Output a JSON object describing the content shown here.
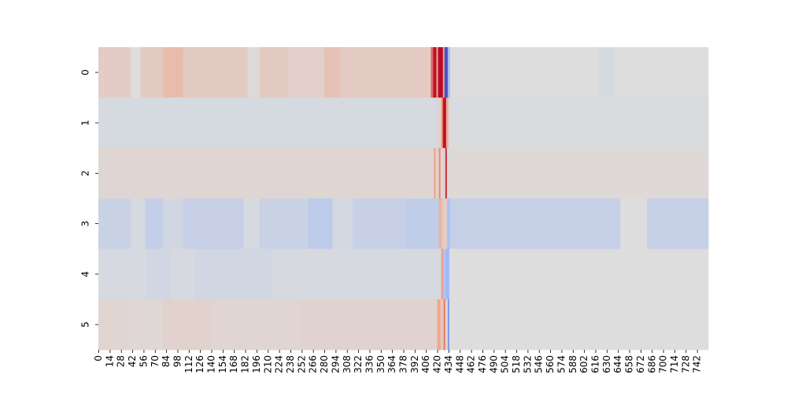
{
  "chart_data": {
    "type": "heatmap",
    "title": "",
    "xlabel": "",
    "ylabel": "",
    "colormap": "coolwarm",
    "color_range": [
      -1,
      1
    ],
    "colorbar": false,
    "n_columns": 756,
    "rows": [
      "0",
      "1",
      "2",
      "3",
      "4",
      "5"
    ],
    "x_ticks": [
      "0",
      "14",
      "28",
      "42",
      "56",
      "70",
      "84",
      "98",
      "112",
      "126",
      "140",
      "154",
      "168",
      "182",
      "196",
      "210",
      "224",
      "238",
      "252",
      "266",
      "280",
      "294",
      "308",
      "322",
      "336",
      "350",
      "364",
      "378",
      "392",
      "406",
      "420",
      "434",
      "448",
      "462",
      "476",
      "490",
      "504",
      "518",
      "532",
      "546",
      "560",
      "574",
      "588",
      "602",
      "616",
      "630",
      "644",
      "658",
      "672",
      "686",
      "700",
      "714",
      "728",
      "742"
    ],
    "row_segments": [
      [
        {
          "x": [
            0,
            40
          ],
          "v": 0.12
        },
        {
          "x": [
            40,
            52
          ],
          "v": 0.0
        },
        {
          "x": [
            52,
            80
          ],
          "v": 0.14
        },
        {
          "x": [
            80,
            105
          ],
          "v": 0.24
        },
        {
          "x": [
            105,
            185
          ],
          "v": 0.14
        },
        {
          "x": [
            185,
            200
          ],
          "v": 0.02
        },
        {
          "x": [
            200,
            235
          ],
          "v": 0.14
        },
        {
          "x": [
            235,
            280
          ],
          "v": 0.1
        },
        {
          "x": [
            280,
            300
          ],
          "v": 0.2
        },
        {
          "x": [
            300,
            412
          ],
          "v": 0.13
        },
        {
          "x": [
            412,
            415
          ],
          "v": 0.65
        },
        {
          "x": [
            415,
            419
          ],
          "v": 0.95
        },
        {
          "x": [
            419,
            421
          ],
          "v": 0.4
        },
        {
          "x": [
            421,
            427
          ],
          "v": 0.98
        },
        {
          "x": [
            427,
            429
          ],
          "v": 0.45
        },
        {
          "x": [
            429,
            433
          ],
          "v": -0.95
        },
        {
          "x": [
            433,
            436
          ],
          "v": -0.35
        },
        {
          "x": [
            436,
            620
          ],
          "v": 0.0
        },
        {
          "x": [
            620,
            640
          ],
          "v": -0.04
        },
        {
          "x": [
            640,
            756
          ],
          "v": 0.0
        }
      ],
      [
        {
          "x": [
            0,
            420
          ],
          "v": -0.05
        },
        {
          "x": [
            420,
            425
          ],
          "v": 0.08
        },
        {
          "x": [
            425,
            427
          ],
          "v": 0.5
        },
        {
          "x": [
            427,
            431
          ],
          "v": 0.95
        },
        {
          "x": [
            431,
            434
          ],
          "v": 0.35
        },
        {
          "x": [
            434,
            756
          ],
          "v": -0.02
        }
      ],
      [
        {
          "x": [
            0,
            416
          ],
          "v": 0.05
        },
        {
          "x": [
            416,
            418
          ],
          "v": 0.45
        },
        {
          "x": [
            418,
            422
          ],
          "v": 0.08
        },
        {
          "x": [
            422,
            424
          ],
          "v": 0.55
        },
        {
          "x": [
            424,
            430
          ],
          "v": 0.05
        },
        {
          "x": [
            430,
            432
          ],
          "v": 0.85
        },
        {
          "x": [
            432,
            756
          ],
          "v": 0.03
        }
      ],
      [
        {
          "x": [
            0,
            40
          ],
          "v": -0.12
        },
        {
          "x": [
            40,
            58
          ],
          "v": -0.05
        },
        {
          "x": [
            58,
            80
          ],
          "v": -0.16
        },
        {
          "x": [
            80,
            105
          ],
          "v": -0.08
        },
        {
          "x": [
            105,
            120
          ],
          "v": -0.14
        },
        {
          "x": [
            120,
            180
          ],
          "v": -0.14
        },
        {
          "x": [
            180,
            200
          ],
          "v": -0.04
        },
        {
          "x": [
            200,
            260
          ],
          "v": -0.12
        },
        {
          "x": [
            260,
            290
          ],
          "v": -0.2
        },
        {
          "x": [
            290,
            315
          ],
          "v": -0.06
        },
        {
          "x": [
            315,
            380
          ],
          "v": -0.14
        },
        {
          "x": [
            380,
            422
          ],
          "v": -0.18
        },
        {
          "x": [
            422,
            426
          ],
          "v": 0.3
        },
        {
          "x": [
            426,
            432
          ],
          "v": 0.12
        },
        {
          "x": [
            432,
            436
          ],
          "v": -0.3
        },
        {
          "x": [
            436,
            647
          ],
          "v": -0.15
        },
        {
          "x": [
            647,
            680
          ],
          "v": 0.0
        },
        {
          "x": [
            680,
            756
          ],
          "v": -0.15
        }
      ],
      [
        {
          "x": [
            0,
            60
          ],
          "v": -0.04
        },
        {
          "x": [
            60,
            90
          ],
          "v": -0.08
        },
        {
          "x": [
            90,
            120
          ],
          "v": -0.04
        },
        {
          "x": [
            120,
            215
          ],
          "v": -0.08
        },
        {
          "x": [
            215,
            425
          ],
          "v": -0.04
        },
        {
          "x": [
            425,
            427
          ],
          "v": 0.5
        },
        {
          "x": [
            427,
            431
          ],
          "v": -0.3
        },
        {
          "x": [
            431,
            435
          ],
          "v": -0.4
        },
        {
          "x": [
            435,
            756
          ],
          "v": 0.0
        }
      ],
      [
        {
          "x": [
            0,
            40
          ],
          "v": 0.06
        },
        {
          "x": [
            40,
            80
          ],
          "v": 0.04
        },
        {
          "x": [
            80,
            140
          ],
          "v": 0.08
        },
        {
          "x": [
            140,
            250
          ],
          "v": 0.06
        },
        {
          "x": [
            250,
            420
          ],
          "v": 0.07
        },
        {
          "x": [
            420,
            424
          ],
          "v": 0.4
        },
        {
          "x": [
            424,
            428
          ],
          "v": 0.15
        },
        {
          "x": [
            428,
            430
          ],
          "v": 0.6
        },
        {
          "x": [
            430,
            433
          ],
          "v": 0.05
        },
        {
          "x": [
            433,
            435
          ],
          "v": -0.6
        },
        {
          "x": [
            435,
            756
          ],
          "v": 0.0
        }
      ]
    ]
  }
}
